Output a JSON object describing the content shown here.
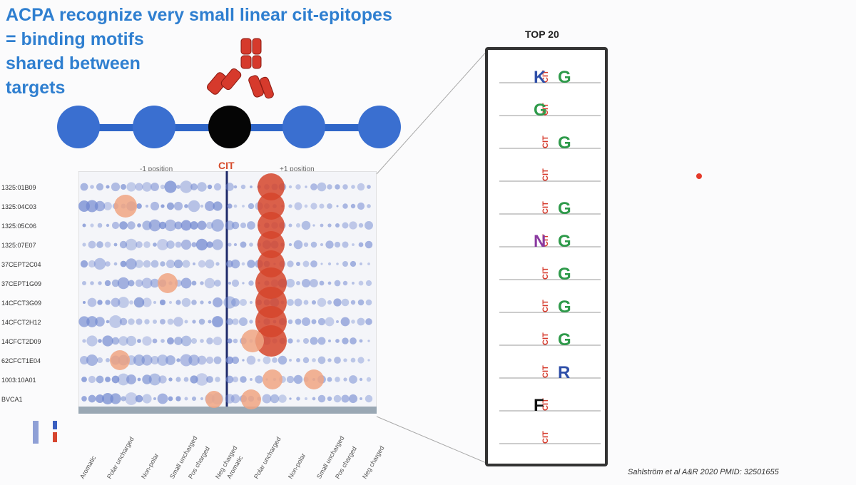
{
  "slide": {
    "title_lines": [
      "ACPA recognize very small linear cit-epitopes",
      "= binding motifs",
      "shared between",
      "targets"
    ],
    "top_label": "TOP 20",
    "cit_label": "CIT",
    "minus_label": "-1 position",
    "plus_label": "+1 position",
    "citation": "Sahlström et al A&R  2020 PMID: 32501655",
    "rows": [
      "1325:01B09",
      "1325:04C03",
      "1325:05C06",
      "1325:07E07",
      "37CEPT2C04",
      "37CEPT1G09",
      "14CFCT3G09",
      "14CFCT2H12",
      "14CFCT2D09",
      "62CFCT1E04",
      "1003:10A01",
      "BVCA1"
    ],
    "logo_letters": [
      [
        "K",
        "G"
      ],
      [
        "G",
        ""
      ],
      [
        "",
        "G"
      ],
      [
        "",
        ""
      ],
      [
        "",
        "G"
      ],
      [
        "N",
        "G"
      ],
      [
        "",
        "G"
      ],
      [
        "",
        "G"
      ],
      [
        "",
        "G"
      ],
      [
        "",
        "R"
      ],
      [
        "F",
        ""
      ],
      [
        "",
        ""
      ]
    ],
    "x_labels": [
      "Aromatic",
      "Polar uncharged",
      "Non-polar",
      "Small uncharged",
      "Pos charged",
      "Neg charged"
    ]
  }
}
